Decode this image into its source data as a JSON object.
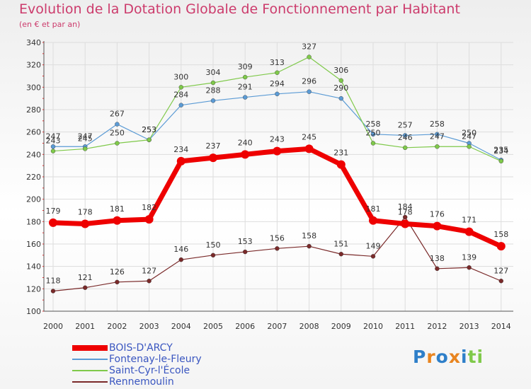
{
  "chart_data": {
    "type": "line",
    "title": "Evolution de la Dotation Globale de Fonctionnement par Habitant",
    "subtitle": "(en € et par an)",
    "xlabel": "",
    "ylabel": "",
    "ylim": [
      100,
      340
    ],
    "yticks": [
      100,
      120,
      140,
      160,
      180,
      200,
      220,
      240,
      260,
      280,
      300,
      320,
      340
    ],
    "grid": true,
    "legend_position": "bottom-left",
    "x": [
      "2000",
      "2001",
      "2002",
      "2003",
      "2004",
      "2005",
      "2006",
      "2007",
      "2008",
      "2009",
      "2010",
      "2011",
      "2012",
      "2013",
      "2014"
    ],
    "series": [
      {
        "name": "BOIS-D'ARCY",
        "color": "#ee0000",
        "emphasis": true,
        "values": [
          179,
          178,
          181,
          182,
          234,
          237,
          240,
          243,
          245,
          231,
          181,
          178,
          176,
          171,
          158
        ]
      },
      {
        "name": "Fontenay-le-Fleury",
        "color": "#5b9bd5",
        "values": [
          247,
          247,
          267,
          253,
          284,
          288,
          291,
          294,
          296,
          290,
          258,
          257,
          258,
          250,
          235
        ]
      },
      {
        "name": "Saint-Cyr-l'École",
        "color": "#7fc94a",
        "values": [
          243,
          245,
          250,
          253,
          300,
          304,
          309,
          313,
          327,
          306,
          250,
          246,
          247,
          247,
          234
        ]
      },
      {
        "name": "Rennemoulin",
        "color": "#7a2a2a",
        "values": [
          118,
          121,
          126,
          127,
          146,
          150,
          153,
          156,
          158,
          151,
          149,
          184,
          138,
          139,
          127
        ]
      }
    ]
  },
  "logo": {
    "letters": [
      "P",
      "r",
      "o",
      "x",
      "i",
      "t",
      "i"
    ],
    "colors": [
      "#2e7fc9",
      "#e8841f",
      "#2e7fc9",
      "#e8841f",
      "#2e7fc9",
      "#7fc94a",
      "#7fc94a"
    ]
  }
}
